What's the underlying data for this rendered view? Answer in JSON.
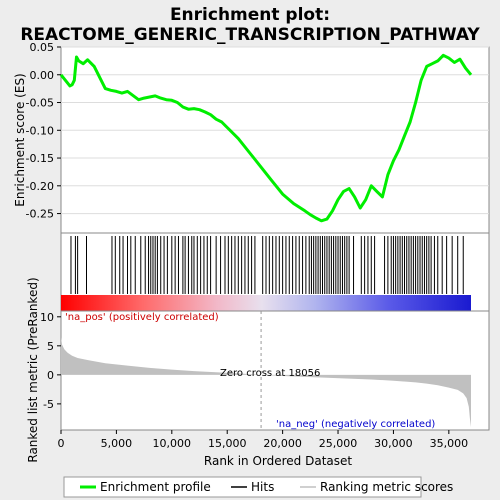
{
  "title_line1": "Enrichment plot:",
  "title_line2": "REACTOME_GENERIC_TRANSCRIPTION_PATHWAY",
  "colors": {
    "enrichment_line": "#00ee00",
    "hits": "#000000",
    "metric_fill": "#c0c0c0",
    "pos_label": "#cc0000",
    "neg_label": "#0000cc",
    "panel_bg": "#ffffff",
    "page_bg": "#ededed"
  },
  "legend": {
    "enrichment": "Enrichment profile",
    "hits": "Hits",
    "metric": "Ranking metric scores"
  },
  "labels": {
    "pos": "'na_pos' (positively correlated)",
    "neg": "'na_neg' (negatively correlated)",
    "zero_cross": "Zero cross at 18056"
  },
  "chart_data": [
    {
      "type": "line",
      "name": "enrichment-profile",
      "ylabel": "Enrichment score (ES)",
      "xlim": [
        0,
        37000
      ],
      "ylim": [
        -0.285,
        0.05
      ],
      "yticks": [
        0.05,
        0.0,
        -0.05,
        -0.1,
        -0.15,
        -0.2,
        -0.25
      ],
      "ytick_labels": [
        "0.05",
        "0.00",
        "-0.05",
        "-0.10",
        "-0.15",
        "-0.20",
        "-0.25"
      ],
      "x": [
        0,
        400,
        800,
        1000,
        1200,
        1400,
        1600,
        2000,
        2400,
        3000,
        4000,
        4500,
        5000,
        5500,
        6000,
        7000,
        7500,
        8000,
        8500,
        9000,
        9500,
        10000,
        10500,
        11000,
        11500,
        12000,
        12500,
        13000,
        13500,
        14000,
        14500,
        15000,
        16000,
        17000,
        18000,
        19000,
        20000,
        21000,
        22000,
        22500,
        23000,
        23500,
        24000,
        24500,
        25000,
        25500,
        26000,
        26500,
        27000,
        27500,
        28000,
        28500,
        29000,
        29500,
        30000,
        30500,
        31000,
        31500,
        32000,
        32500,
        33000,
        33500,
        34000,
        34500,
        35000,
        35500,
        36000,
        36500,
        37000
      ],
      "y": [
        0.0,
        -0.01,
        -0.02,
        -0.018,
        -0.01,
        0.032,
        0.025,
        0.02,
        0.027,
        0.015,
        -0.025,
        -0.028,
        -0.03,
        -0.033,
        -0.03,
        -0.045,
        -0.042,
        -0.04,
        -0.038,
        -0.042,
        -0.045,
        -0.046,
        -0.05,
        -0.058,
        -0.062,
        -0.061,
        -0.063,
        -0.067,
        -0.072,
        -0.08,
        -0.085,
        -0.095,
        -0.115,
        -0.14,
        -0.165,
        -0.19,
        -0.215,
        -0.232,
        -0.245,
        -0.252,
        -0.258,
        -0.263,
        -0.26,
        -0.245,
        -0.225,
        -0.21,
        -0.205,
        -0.22,
        -0.24,
        -0.225,
        -0.2,
        -0.21,
        -0.22,
        -0.18,
        -0.155,
        -0.135,
        -0.11,
        -0.085,
        -0.05,
        -0.01,
        0.015,
        0.02,
        0.025,
        0.035,
        0.03,
        0.022,
        0.028,
        0.012,
        0.0
      ]
    },
    {
      "type": "scatter",
      "name": "hits",
      "x": [
        900,
        1300,
        1500,
        2300,
        4600,
        4900,
        5300,
        5600,
        6000,
        6300,
        6700,
        7200,
        7600,
        7900,
        8100,
        8300,
        8500,
        8700,
        9000,
        9300,
        9600,
        10000,
        10300,
        10600,
        11000,
        11200,
        11500,
        11800,
        12000,
        12300,
        12600,
        12900,
        13200,
        13500,
        14000,
        14400,
        14800,
        15100,
        15400,
        15700,
        16000,
        16300,
        16600,
        16900,
        17200,
        17500,
        18200,
        18500,
        18800,
        19100,
        19400,
        19700,
        20000,
        20300,
        20600,
        20900,
        21200,
        21500,
        21800,
        22100,
        22400,
        22600,
        22800,
        23000,
        23200,
        23400,
        23600,
        23800,
        24000,
        24200,
        24400,
        24600,
        24800,
        25000,
        25200,
        25400,
        25600,
        25800,
        26000,
        26400,
        27100,
        27400,
        27700,
        28000,
        28300,
        29200,
        29500,
        29800,
        30000,
        30200,
        30400,
        30600,
        30800,
        31000,
        31200,
        31400,
        31600,
        31800,
        32000,
        32200,
        32400,
        32600,
        32800,
        33000,
        33200,
        33400,
        33700,
        34000,
        34400,
        34800,
        35300,
        35800,
        36300
      ]
    },
    {
      "type": "area",
      "name": "ranked-list-metric",
      "ylabel": "Ranked list metric (PreRanked)",
      "xlabel": "Rank in Ordered Dataset",
      "xlim": [
        0,
        37000
      ],
      "ylim": [
        -9.5,
        11
      ],
      "yticks": [
        10,
        5,
        0,
        -5
      ],
      "ytick_labels": [
        "10",
        "5",
        "0",
        "-5"
      ],
      "xticks": [
        0,
        5000,
        10000,
        15000,
        20000,
        25000,
        30000,
        35000
      ],
      "xtick_labels": [
        "0",
        "5,000",
        "10,000",
        "15,000",
        "20,000",
        "25,000",
        "30,000",
        "35,000"
      ],
      "x": [
        0,
        100,
        300,
        600,
        1000,
        1500,
        2500,
        4000,
        6000,
        8000,
        10000,
        12000,
        14000,
        16000,
        18056,
        20000,
        22000,
        24000,
        26000,
        28000,
        30000,
        32000,
        33000,
        34000,
        35000,
        35800,
        36300,
        36600,
        36800,
        36900,
        37000
      ],
      "y": [
        6.5,
        5.2,
        4.4,
        3.8,
        3.3,
        2.9,
        2.5,
        2.0,
        1.6,
        1.2,
        0.9,
        0.65,
        0.45,
        0.25,
        0.0,
        -0.2,
        -0.35,
        -0.5,
        -0.65,
        -0.8,
        -1.0,
        -1.3,
        -1.5,
        -1.8,
        -2.2,
        -2.6,
        -3.2,
        -4.0,
        -5.5,
        -7.5,
        -9.0
      ]
    }
  ]
}
